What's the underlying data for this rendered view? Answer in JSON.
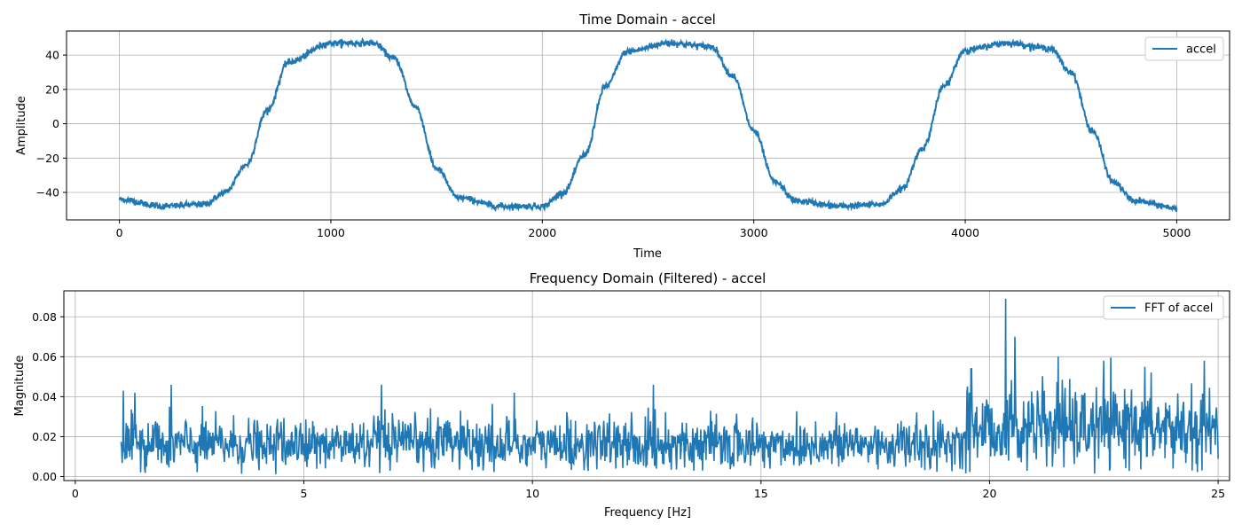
{
  "chart_data": [
    {
      "type": "line",
      "title": "Time Domain - accel",
      "xlabel": "Time",
      "ylabel": "Amplitude",
      "xlim": [
        -250,
        5250
      ],
      "ylim": [
        -56,
        54
      ],
      "xticks": [
        0,
        1000,
        2000,
        3000,
        4000,
        5000
      ],
      "yticks": [
        -40,
        -20,
        0,
        20,
        40
      ],
      "grid": true,
      "legend_position": "top-right",
      "series": [
        {
          "name": "accel",
          "color": "#1f77b4",
          "description_points": {
            "x": [
              0,
              200,
              400,
              500,
              600,
              700,
              800,
              1000,
              1200,
              1300,
              1400,
              1500,
              1600,
              1800,
              2000,
              2100,
              2200,
              2300,
              2400,
              2600,
              2800,
              2900,
              3000,
              3100,
              3200,
              3400,
              3600,
              3700,
              3800,
              3900,
              4000,
              4200,
              4400,
              4500,
              4600,
              4700,
              4800,
              5000
            ],
            "y": [
              -44,
              -48,
              -47,
              -40,
              -24,
              8,
              36,
              47,
              47,
              38,
              10,
              -26,
              -43,
              -48,
              -48,
              -40,
              -18,
              22,
              42,
              47,
              45,
              28,
              -4,
              -34,
              -45,
              -48,
              -47,
              -38,
              -14,
              22,
              43,
              47,
              44,
              30,
              -4,
              -34,
              -45,
              -49
            ]
          }
        }
      ]
    },
    {
      "type": "line",
      "title": "Frequency Domain (Filtered) - accel",
      "xlabel": "Frequency [Hz]",
      "ylabel": "Magnitude",
      "xlim": [
        -0.25,
        25.25
      ],
      "ylim": [
        -0.002,
        0.093
      ],
      "xticks": [
        0,
        5,
        10,
        15,
        20,
        25
      ],
      "yticks": [
        0.0,
        0.02,
        0.04,
        0.06,
        0.08
      ],
      "grid": true,
      "legend_position": "top-right",
      "series": [
        {
          "name": "FFT of accel",
          "color": "#1f77b4",
          "x_range": [
            1,
            25
          ],
          "typical_range": [
            0.005,
            0.03
          ],
          "peaks": [
            {
              "x": 1.05,
              "y": 0.043
            },
            {
              "x": 1.3,
              "y": 0.042
            },
            {
              "x": 2.1,
              "y": 0.046
            },
            {
              "x": 6.7,
              "y": 0.046
            },
            {
              "x": 9.6,
              "y": 0.042
            },
            {
              "x": 12.65,
              "y": 0.046
            },
            {
              "x": 19.6,
              "y": 0.054
            },
            {
              "x": 20.35,
              "y": 0.089
            },
            {
              "x": 20.55,
              "y": 0.07
            },
            {
              "x": 21.5,
              "y": 0.06
            },
            {
              "x": 22.5,
              "y": 0.058
            },
            {
              "x": 23.4,
              "y": 0.055
            },
            {
              "x": 24.7,
              "y": 0.058
            }
          ]
        }
      ]
    }
  ]
}
